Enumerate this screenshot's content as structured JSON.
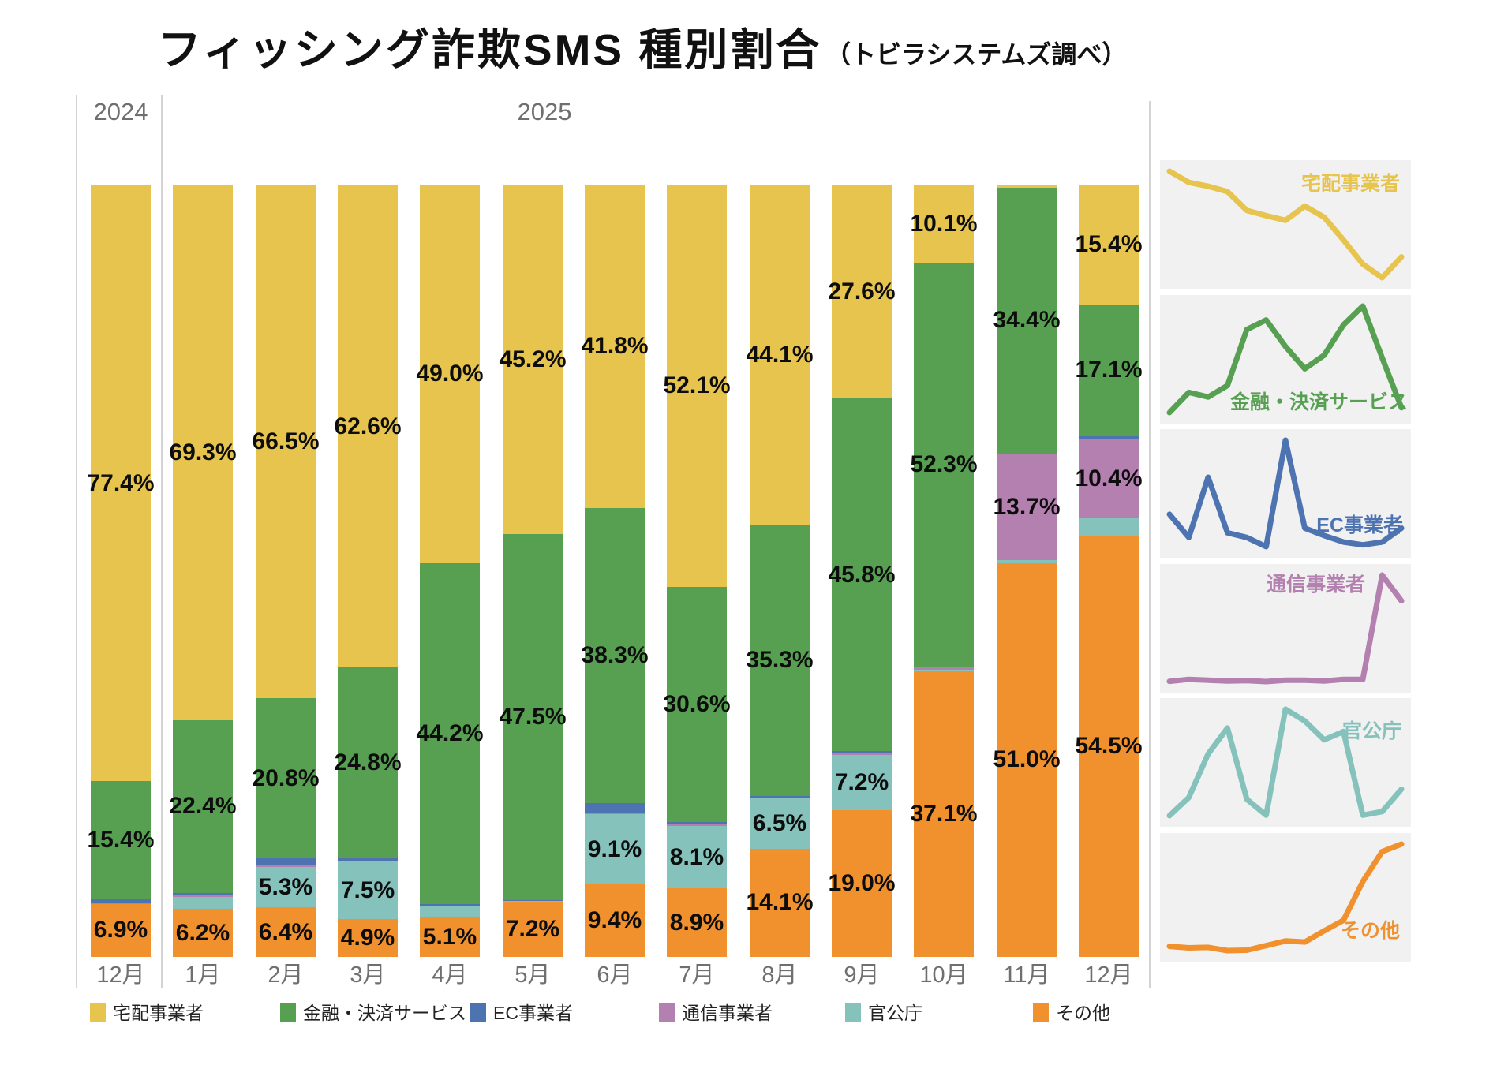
{
  "title": {
    "main": "フィッシング詐欺SMS 種別割合",
    "source": "（トビラシステムズ調べ）"
  },
  "years": [
    {
      "label": "2024",
      "month_count": 1
    },
    {
      "label": "2025",
      "month_count": 12
    }
  ],
  "legend": {
    "items": [
      "宅配事業者",
      "金融・決済サービス",
      "EC事業者",
      "通信事業者",
      "官公庁",
      "その他"
    ]
  },
  "colors": {
    "takuhai": "#e6c44e",
    "kinyu": "#57a052",
    "ec": "#4d73b1",
    "tsushin": "#b380af",
    "kancho": "#85c2bc",
    "sonota": "#f1912e",
    "axis_text": "#6f6f6f",
    "label_text": "#0d0d0d",
    "divider": "#d4d4d4",
    "sparkline_bg": "#f1f1f2"
  },
  "chart_data": {
    "type": "bar",
    "stacked": true,
    "unit": "%",
    "title": "フィッシング詐欺SMS 種別割合",
    "xlabel": "",
    "ylabel": "",
    "ylim": [
      0,
      100
    ],
    "grid": false,
    "label_min": 4.0,
    "categories": [
      "12月",
      "1月",
      "2月",
      "3月",
      "4月",
      "5月",
      "6月",
      "7月",
      "8月",
      "9月",
      "10月",
      "11月",
      "12月"
    ],
    "series": [
      {
        "name": "宅配事業者",
        "color": "#e6c44e",
        "values": [
          77.4,
          69.3,
          66.5,
          62.6,
          49.0,
          45.2,
          41.8,
          52.1,
          44.1,
          27.6,
          10.1,
          0.3,
          15.4
        ],
        "labeled": [
          77.4,
          69.3,
          66.5,
          62.6,
          49.0,
          45.2,
          41.8,
          52.1,
          44.1,
          27.6,
          10.1,
          null,
          15.4
        ]
      },
      {
        "name": "金融・決済サービス",
        "color": "#57a052",
        "values": [
          15.4,
          22.4,
          20.8,
          24.8,
          44.2,
          47.5,
          38.3,
          30.6,
          35.3,
          45.8,
          52.3,
          34.4,
          17.1
        ],
        "labeled": [
          15.4,
          22.4,
          20.8,
          24.8,
          44.2,
          47.5,
          38.3,
          30.6,
          35.3,
          45.8,
          52.3,
          34.4,
          17.1
        ]
      },
      {
        "name": "EC事業者",
        "color": "#4d73b1",
        "values": [
          0.45,
          0.2,
          0.85,
          0.25,
          0.2,
          0.1,
          1.25,
          0.3,
          0.22,
          0.15,
          0.12,
          0.15,
          0.3
        ],
        "labeled": [
          null,
          null,
          null,
          null,
          null,
          null,
          null,
          null,
          null,
          null,
          null,
          null,
          null
        ]
      },
      {
        "name": "通信事業者",
        "color": "#b380af",
        "values": [
          0.05,
          0.3,
          0.2,
          0.1,
          0.15,
          0.02,
          0.2,
          0.2,
          0.1,
          0.3,
          0.3,
          13.7,
          10.4
        ],
        "labeled": [
          null,
          null,
          null,
          null,
          null,
          null,
          null,
          null,
          null,
          null,
          null,
          13.7,
          10.4
        ]
      },
      {
        "name": "官公庁",
        "color": "#85c2bc",
        "values": [
          0.05,
          1.6,
          5.3,
          7.5,
          1.45,
          0.1,
          9.1,
          8.1,
          6.5,
          7.2,
          0.1,
          0.4,
          2.3
        ],
        "labeled": [
          null,
          null,
          5.3,
          7.5,
          null,
          null,
          9.1,
          8.1,
          6.5,
          7.2,
          null,
          null,
          null
        ]
      },
      {
        "name": "その他",
        "color": "#f1912e",
        "values": [
          6.9,
          6.2,
          6.4,
          4.9,
          5.1,
          7.2,
          9.4,
          8.9,
          14.1,
          19.0,
          37.1,
          51.0,
          54.5
        ],
        "labeled": [
          6.9,
          6.2,
          6.4,
          4.9,
          5.1,
          7.2,
          9.4,
          8.9,
          14.1,
          19.0,
          37.1,
          51.0,
          54.5
        ]
      }
    ],
    "legend_position": "bottom",
    "sparklines_note": "right column shows one mini line chart per series, top to bottom in series order"
  }
}
